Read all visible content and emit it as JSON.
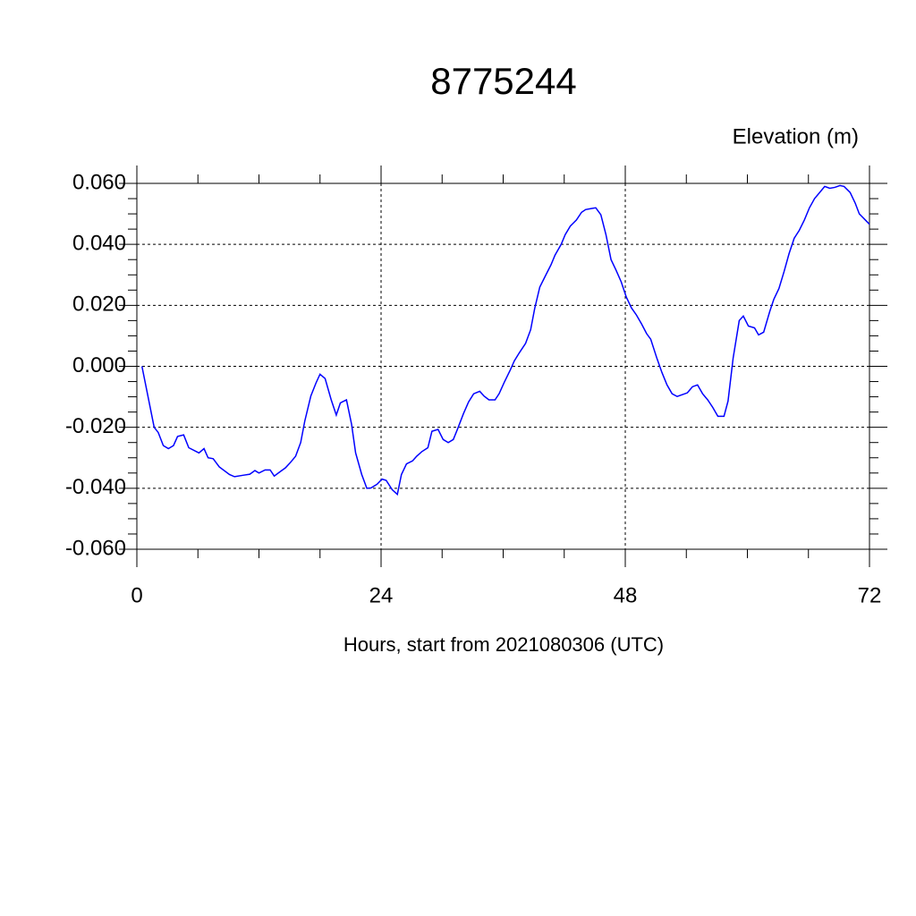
{
  "chart_data": {
    "type": "line",
    "title": "8775244",
    "y_label": "Elevation (m)",
    "x_label": "Hours, start from 2021080306 (UTC)",
    "xlim": [
      0,
      72
    ],
    "xticks": [
      0,
      24,
      48,
      72
    ],
    "ylim": [
      -0.06,
      0.06
    ],
    "yticks": [
      {
        "value": -0.06,
        "label": "-0.060"
      },
      {
        "value": -0.04,
        "label": "-0.040"
      },
      {
        "value": -0.02,
        "label": "-0.020"
      },
      {
        "value": 0,
        "label": "0.000"
      },
      {
        "value": 0.02,
        "label": "0.020"
      },
      {
        "value": 0.04,
        "label": "0.040"
      },
      {
        "value": 0.06,
        "label": "0.060"
      }
    ],
    "grid": true,
    "series": [
      {
        "color": "#0000ff",
        "x": [
          0.5,
          1.7,
          2.1,
          2.6,
          3.1,
          3.6,
          4.0,
          4.6,
          5.1,
          6.1,
          6.6,
          7.0,
          7.5,
          8.1,
          9.1,
          9.6,
          10.5,
          11.1,
          11.6,
          12.0,
          12.6,
          13.1,
          13.5,
          14.1,
          14.6,
          15.1,
          15.6,
          16.1,
          16.5,
          17.1,
          17.6,
          18.0,
          18.5,
          19.1,
          19.6,
          20.0,
          20.6,
          21.1,
          21.5,
          22.1,
          22.6,
          23.0,
          23.6,
          24.1,
          24.5,
          25.1,
          25.6,
          26.0,
          26.5,
          27.1,
          27.5,
          28.0,
          28.6,
          29.0,
          29.6,
          30.1,
          30.6,
          31.1,
          31.5,
          32.1,
          32.6,
          33.1,
          33.7,
          34.1,
          34.6,
          35.2,
          35.6,
          36.1,
          36.7,
          37.1,
          37.6,
          38.2,
          38.7,
          39.1,
          39.6,
          40.2,
          40.7,
          41.1,
          41.7,
          42.1,
          42.6,
          43.2,
          43.7,
          44.1,
          44.6,
          45.1,
          45.6,
          46.1,
          46.6,
          47.1,
          47.6,
          48.1,
          48.6,
          49.1,
          49.6,
          50.1,
          50.5,
          51.1,
          51.6,
          52.1,
          52.6,
          53.1,
          53.6,
          54.1,
          54.6,
          55.1,
          55.6,
          56.1,
          56.6,
          57.1,
          57.7,
          58.1,
          58.6,
          59.2,
          59.6,
          60.1,
          60.7,
          61.1,
          61.6,
          62.2,
          62.6,
          63.1,
          63.6,
          64.1,
          64.6,
          65.1,
          65.6,
          66.1,
          66.6,
          67.1,
          67.6,
          68.1,
          68.6,
          69.1,
          69.5,
          70.1,
          70.6,
          71.0,
          72.0
        ],
        "values": [
          0,
          -0.02,
          -0.0217,
          -0.026,
          -0.027,
          -0.026,
          -0.023,
          -0.0225,
          -0.0267,
          -0.0284,
          -0.027,
          -0.03,
          -0.0303,
          -0.033,
          -0.0355,
          -0.0362,
          -0.0357,
          -0.0354,
          -0.0342,
          -0.035,
          -0.034,
          -0.034,
          -0.036,
          -0.0345,
          -0.0333,
          -0.0315,
          -0.0295,
          -0.025,
          -0.018,
          -0.0097,
          -0.0055,
          -0.0026,
          -0.004,
          -0.011,
          -0.016,
          -0.012,
          -0.011,
          -0.019,
          -0.0284,
          -0.0355,
          -0.04,
          -0.0399,
          -0.0387,
          -0.037,
          -0.0374,
          -0.0405,
          -0.042,
          -0.0355,
          -0.032,
          -0.031,
          -0.0295,
          -0.028,
          -0.0267,
          -0.0213,
          -0.0207,
          -0.024,
          -0.025,
          -0.024,
          -0.0207,
          -0.0155,
          -0.0117,
          -0.009,
          -0.0082,
          -0.0097,
          -0.011,
          -0.011,
          -0.009,
          -0.0053,
          -0.0012,
          0.0018,
          0.0045,
          0.0075,
          0.012,
          0.019,
          0.026,
          0.03,
          0.0333,
          0.0365,
          0.04,
          0.0432,
          0.046,
          0.048,
          0.0505,
          0.0514,
          0.0517,
          0.052,
          0.0497,
          0.0432,
          0.035,
          0.0315,
          0.0277,
          0.0227,
          0.0192,
          0.0168,
          0.0139,
          0.0107,
          0.0089,
          0.0027,
          -0.002,
          -0.0061,
          -0.009,
          -0.0099,
          -0.0093,
          -0.0087,
          -0.0067,
          -0.0061,
          -0.009,
          -0.011,
          -0.0135,
          -0.0164,
          -0.0164,
          -0.0114,
          0.0027,
          0.015,
          0.0165,
          0.0132,
          0.0126,
          0.0103,
          0.0112,
          0.018,
          0.022,
          0.0255,
          0.031,
          0.037,
          0.042,
          0.0446,
          0.048,
          0.052,
          0.055,
          0.057,
          0.059,
          0.0584,
          0.0587,
          0.0593,
          0.059,
          0.057,
          0.0535,
          0.05,
          0.0466
        ]
      }
    ]
  }
}
